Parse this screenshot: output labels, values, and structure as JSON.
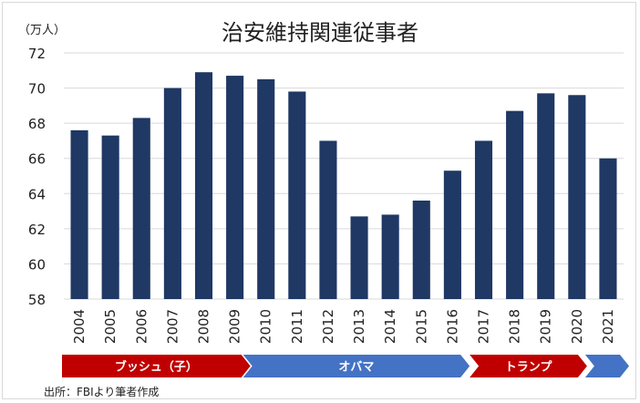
{
  "chart_data": {
    "type": "bar",
    "title": "治安維持関連従事者",
    "ylabel": "（万人）",
    "categories": [
      "2004",
      "2005",
      "2006",
      "2007",
      "2008",
      "2009",
      "2010",
      "2011",
      "2012",
      "2013",
      "2014",
      "2015",
      "2016",
      "2017",
      "2018",
      "2019",
      "2020",
      "2021"
    ],
    "values": [
      67.6,
      67.3,
      68.3,
      70.0,
      70.9,
      70.7,
      70.5,
      69.8,
      67.0,
      62.7,
      62.8,
      63.6,
      65.3,
      67.0,
      68.7,
      69.7,
      69.6,
      66.0
    ],
    "ylim": [
      58,
      72
    ],
    "yticks": [
      58,
      60,
      62,
      64,
      66,
      68,
      70,
      72
    ],
    "grid": true,
    "bar_color": "#1f3864",
    "eras": [
      {
        "label": "ブッシュ（子）",
        "start": "2004",
        "end": "2009",
        "color": "#c00000"
      },
      {
        "label": "オバマ",
        "start": "2010",
        "end": "2017",
        "color": "#4472c4"
      },
      {
        "label": "トランプ",
        "start": "2017",
        "end": "2020",
        "color": "#c00000"
      },
      {
        "label": "",
        "start": "2021",
        "end": "2021",
        "color": "#4472c4"
      }
    ]
  },
  "source": "出所：FBIより筆者作成"
}
